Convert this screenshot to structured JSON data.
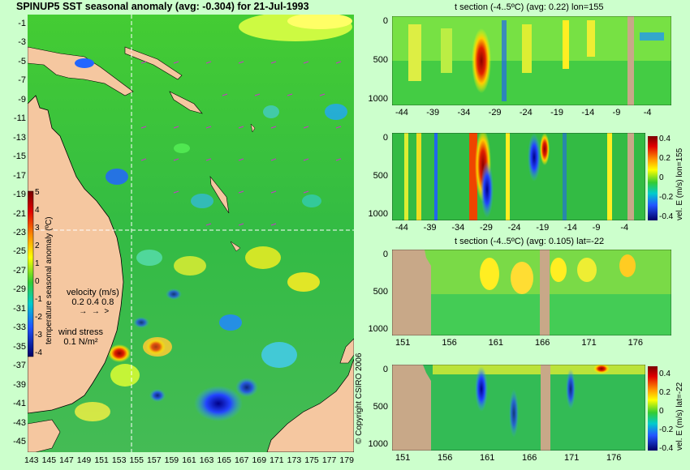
{
  "main_title": "SPINUP5 SST seasonal anomaly (avg: -0.304) for 21-Jul-1993",
  "map": {
    "lat_ticks": [
      "-1",
      "-3",
      "-5",
      "-7",
      "-9",
      "-11",
      "-13",
      "-15",
      "-17",
      "-19",
      "-21",
      "-23",
      "-25",
      "-27",
      "-29",
      "-31",
      "-33",
      "-35",
      "-37",
      "-39",
      "-41",
      "-43",
      "-45"
    ],
    "lon_ticks": [
      "143",
      "145",
      "147",
      "149",
      "151",
      "153",
      "155",
      "157",
      "159",
      "161",
      "163",
      "165",
      "167",
      "169",
      "171",
      "173",
      "175",
      "177",
      "179"
    ],
    "colorbar_label": "temperature seasonal anomaly (ºC)",
    "colorbar_ticks": [
      "5",
      "4",
      "3",
      "2",
      "1",
      "0",
      "-1",
      "-2",
      "-3",
      "-4"
    ],
    "velocity_legend": {
      "title": "velocity (m/s)",
      "values": "0.2 0.4 0.8"
    },
    "wind_legend": {
      "title": "wind stress",
      "value": "0.1 N/m²"
    },
    "crosshair": {
      "lon": 155,
      "lat": -22
    }
  },
  "copyright": "© Copyright CSIRO 2006",
  "panels": [
    {
      "title": "t section (-4..5ºC) (avg: 0.22) lon=155",
      "x_ticks": [
        "-44",
        "-39",
        "-34",
        "-29",
        "-24",
        "-19",
        "-14",
        "-9",
        "-4"
      ],
      "y_ticks": [
        "0",
        "500",
        "1000"
      ]
    },
    {
      "title": "",
      "x_ticks": [
        "-44",
        "-39",
        "-34",
        "-29",
        "-24",
        "-19",
        "-14",
        "-9",
        "-4"
      ],
      "y_ticks": [
        "0",
        "500",
        "1000"
      ],
      "colorbar_label": "vel. E (m/s) lon=155",
      "colorbar_ticks": [
        "0.4",
        "0.2",
        "0",
        "-0.2",
        "-0.4"
      ]
    },
    {
      "title": "t section (-4..5ºC) (avg: 0.105) lat=-22",
      "x_ticks": [
        "151",
        "156",
        "161",
        "166",
        "171",
        "176"
      ],
      "y_ticks": [
        "0",
        "500",
        "1000"
      ]
    },
    {
      "title": "",
      "x_ticks": [
        "151",
        "156",
        "161",
        "166",
        "171",
        "176"
      ],
      "y_ticks": [
        "0",
        "500",
        "1000"
      ],
      "colorbar_label": "vel. E (m/s) lat=-22",
      "colorbar_ticks": [
        "0.4",
        "0.2",
        "0",
        "-0.2",
        "-0.4"
      ]
    }
  ],
  "colors": {
    "background": "#ccffcc",
    "land": "#f5c7a0",
    "ocean_mid": "#33bb33"
  }
}
